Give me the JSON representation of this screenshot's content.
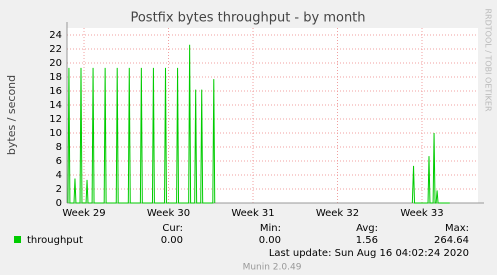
{
  "chart_data": {
    "type": "line",
    "title": "Postfix bytes throughput - by month",
    "y_label": "bytes / second",
    "x": [
      2.17,
      2.25,
      2.33,
      2.67,
      2.75,
      2.83,
      3.17,
      3.25,
      3.33,
      3.67,
      3.75,
      3.83,
      4.17,
      4.25,
      4.33,
      5.17,
      5.25,
      5.33,
      6.17,
      6.25,
      6.33,
      7.17,
      7.25,
      7.33,
      8.17,
      8.25,
      8.33,
      9.17,
      9.25,
      9.33,
      10.17,
      10.25,
      10.33,
      11.17,
      11.25,
      11.33,
      12.17,
      12.25,
      12.33,
      12.67,
      12.75,
      12.83,
      13.17,
      13.25,
      13.33,
      14.17,
      14.25,
      14.33,
      22,
      30.7,
      30.8,
      30.88,
      32.0,
      32.08,
      32.16,
      32.42,
      32.5,
      32.58,
      32.67,
      32.75,
      32.83,
      33.8
    ],
    "series": [
      {
        "name": "throughput",
        "color": "#00cc00",
        "values": [
          0,
          19.3,
          0,
          0,
          3.5,
          0,
          0,
          19.3,
          0,
          0,
          3.3,
          0,
          0,
          19.3,
          0,
          0,
          19.3,
          0,
          0,
          19.3,
          0,
          0,
          19.3,
          0,
          0,
          19.3,
          0,
          0,
          19.3,
          0,
          0,
          19.3,
          0,
          0,
          19.3,
          0,
          0,
          22.6,
          0,
          0,
          16.2,
          0,
          0,
          16.2,
          0,
          0,
          17.7,
          0,
          null,
          0,
          5.3,
          0,
          0,
          6.7,
          0,
          0,
          10,
          0,
          0,
          1.8,
          0,
          0
        ]
      }
    ],
    "xlim": [
      2.09,
      36.14
    ],
    "xticks": [
      {
        "value": 3.5,
        "label": "Week 29"
      },
      {
        "value": 10.5,
        "label": "Week 30"
      },
      {
        "value": 17.5,
        "label": "Week 31"
      },
      {
        "value": 24.5,
        "label": "Week 32"
      },
      {
        "value": 31.5,
        "label": "Week 33"
      }
    ],
    "ylim": [
      0,
      25
    ],
    "yticks": [
      0,
      2,
      4,
      6,
      8,
      10,
      12,
      14,
      16,
      18,
      20,
      22,
      24
    ],
    "grid": true,
    "legend_headers": [
      "Cur:",
      "Min:",
      "Avg:",
      "Max:"
    ],
    "legend_values": [
      "0.00",
      "0.00",
      "1.56",
      "264.64"
    ],
    "last_update": "Last update: Sun Aug 16 04:02:24 2020",
    "footer": "Munin 2.0.49",
    "side_text": "RRDTOOL / TOBI OETIKER"
  }
}
